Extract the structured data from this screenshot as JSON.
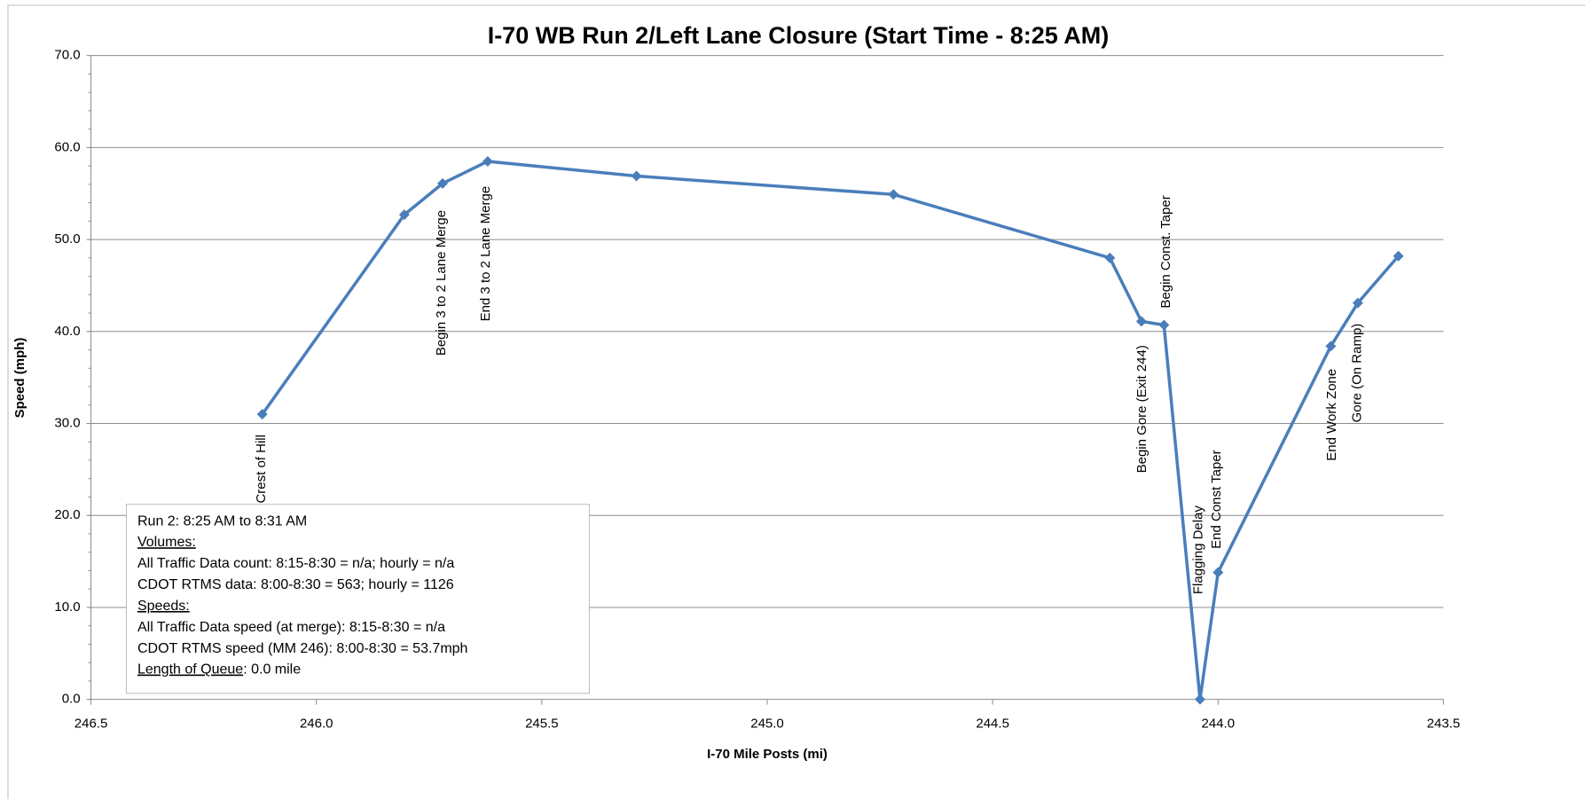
{
  "chart_data": {
    "type": "line",
    "title": "I-70 WB Run 2/Left Lane Closure (Start Time - 8:25 AM)",
    "x_label": "I-70 Mile Posts (mi)",
    "y_label": "Speed (mph)",
    "x_reversed": true,
    "grid": true,
    "xlim": [
      246.5,
      243.5
    ],
    "ylim": [
      0,
      70
    ],
    "xticks": [
      246.5,
      {
        "value": 246,
        "label": "246.0"
      },
      245.5,
      {
        "value": 245,
        "label": "245.0"
      },
      244.5,
      {
        "value": 244,
        "label": "244.0"
      },
      243.5
    ],
    "yticks": [
      {
        "value": 0,
        "label": "0.0"
      },
      {
        "value": 10,
        "label": "10.0"
      },
      {
        "value": 20,
        "label": "20.0"
      },
      {
        "value": 30,
        "label": "30.0"
      },
      {
        "value": 40,
        "label": "40.0"
      },
      {
        "value": 50,
        "label": "50.0"
      },
      {
        "value": 60,
        "label": "60.0"
      },
      {
        "value": 70,
        "label": "70.0"
      }
    ],
    "series": [
      {
        "name": "Speed",
        "color": "#4a7ebb",
        "x": [
          246.12,
          245.805,
          245.72,
          245.62,
          245.29,
          244.72,
          244.24,
          244.17,
          244.12,
          244.04,
          244.0,
          243.75,
          243.69,
          243.6
        ],
        "values": [
          31.0,
          52.7,
          56.1,
          58.5,
          56.9,
          54.9,
          48.0,
          41.1,
          40.7,
          0,
          13.8,
          38.4,
          43.1,
          48.2
        ]
      }
    ],
    "annotations": [
      "Crest of Hill",
      "Begin 3 to 2 Lane Merge",
      "End 3 to 2 Lane Merge",
      "Begin Gore (Exit 244)",
      "Begin Const. Taper",
      "Flagging Delay",
      "End Const Taper",
      "End Work Zone",
      "Gore (On Ramp)"
    ],
    "info_box": {
      "lines": [
        "Run 2: 8:25 AM to 8:31 AM",
        "Volumes:",
        "All Traffic Data count: 8:15-8:30 = n/a; hourly = n/a",
        "CDOT RTMS data: 8:00-8:30 = 563; hourly = 1126",
        "Speeds:",
        "All Traffic Data speed (at merge): 8:15-8:30 = n/a",
        "CDOT RTMS speed (MM 246): 8:00-8:30 = 53.7mph"
      ],
      "queue_label": "Length of Queue",
      "queue_value": ": 0.0 mile"
    }
  }
}
